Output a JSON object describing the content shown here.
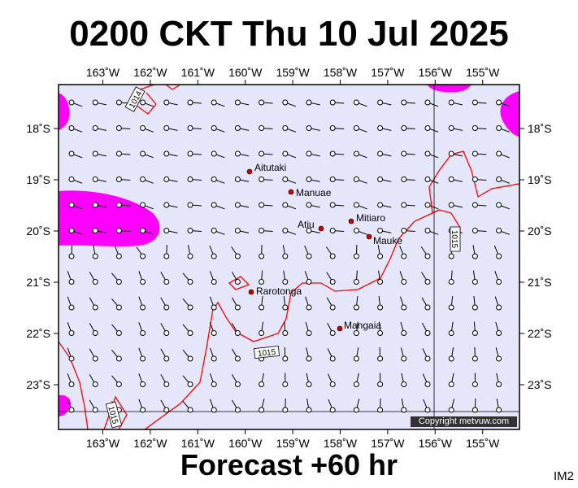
{
  "header": {
    "title": "0200 CKT Thu 10 Jul 2025"
  },
  "footer": {
    "forecast": "Forecast +60 hr",
    "code": "IM2",
    "copyright": "Copyright metvuw.com"
  },
  "map": {
    "lon_labels": [
      "163˚W",
      "162˚W",
      "161˚W",
      "160˚W",
      "159˚W",
      "158˚W",
      "157˚W",
      "156˚W",
      "155˚W"
    ],
    "lat_labels": [
      "18˚S",
      "19˚S",
      "20˚S",
      "21˚S",
      "22˚S",
      "23˚S"
    ],
    "places": [
      {
        "name": "Aitutaki"
      },
      {
        "name": "Manuae"
      },
      {
        "name": "Atiu"
      },
      {
        "name": "Mitiaro"
      },
      {
        "name": "Mauke"
      },
      {
        "name": "Rarotonga"
      },
      {
        "name": "Mangaia"
      }
    ],
    "isobar_labels": [
      "1014",
      "1015",
      "1015",
      "1015"
    ],
    "colors": {
      "ocean": "#e6e6fa",
      "rain": "#ff00ff",
      "isobar": "#ff0000",
      "grid": "#000000",
      "town": "#cc0000"
    }
  }
}
